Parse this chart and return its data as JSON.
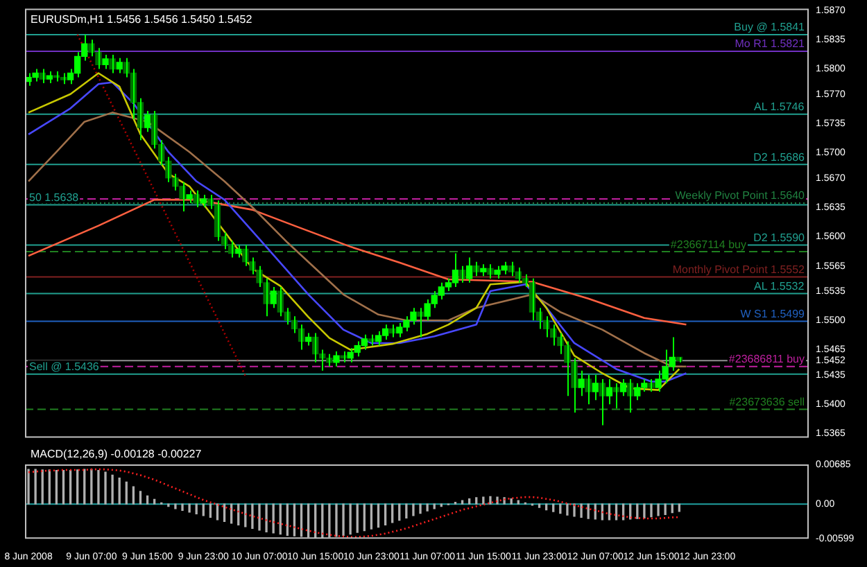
{
  "chart_data": [
    {
      "type": "candlestick",
      "title": "EURUSDm,H1 1.5456 1.5456 1.5450 1.5452",
      "color": "#00ff00",
      "colors": [
        "#00ff00",
        "#00ff00",
        "#007000",
        "#00ff00",
        "#007000",
        "#007000",
        "#00ff00",
        "#00ff00",
        "#00ff00",
        "#007000",
        "#007000",
        "#00ff00",
        "#007000",
        "#00ff00",
        "#007000",
        "#007000",
        "#007000",
        "#00ff00",
        "#007000",
        "#007000",
        "#007000",
        "#007000",
        "#007000",
        "#00ff00",
        "#007000",
        "#00ff00",
        "#007000",
        "#007000",
        "#007000",
        "#007000",
        "#00ff00",
        "#007000",
        "#007000",
        "#007000",
        "#007000",
        "#00ff00",
        "#007000",
        "#007000",
        "#007000",
        "#007000",
        "#00ff00",
        "#007000",
        "#007000",
        "#007000",
        "#00ff00",
        "#007000",
        "#00ff00",
        "#00ff00",
        "#00ff00",
        "#007000",
        "#00ff00",
        "#00ff00",
        "#007000",
        "#00ff00",
        "#00ff00",
        "#00ff00",
        "#007000",
        "#00ff00",
        "#00ff00",
        "#00ff00",
        "#00ff00",
        "#00ff00",
        "#007000",
        "#00ff00",
        "#007000",
        "#00ff00",
        "#007000",
        "#00ff00",
        "#00ff00",
        "#007000",
        "#007000",
        "#007000",
        "#007000",
        "#007000",
        "#007000",
        "#007000",
        "#007000",
        "#007000",
        "#007000",
        "#00ff00",
        "#007000",
        "#00ff00",
        "#007000",
        "#00ff00",
        "#007000",
        "#00ff00",
        "#007000",
        "#00ff00",
        "#00ff00",
        "#007000",
        "#00ff00",
        "#00ff00",
        "#00ff00",
        "#007000"
      ],
      "x": [
        "2008-06-08T22:00",
        "2008-06-08T23:00",
        "2008-06-09T00:00",
        "2008-06-09T01:00",
        "2008-06-09T02:00",
        "2008-06-09T03:00",
        "2008-06-09T04:00",
        "2008-06-09T05:00",
        "2008-06-09T06:00",
        "2008-06-09T07:00",
        "2008-06-09T08:00",
        "2008-06-09T09:00",
        "2008-06-09T10:00",
        "2008-06-09T11:00",
        "2008-06-09T12:00",
        "2008-06-09T13:00",
        "2008-06-09T14:00",
        "2008-06-09T15:00",
        "2008-06-09T16:00",
        "2008-06-09T17:00",
        "2008-06-09T18:00",
        "2008-06-09T19:00",
        "2008-06-09T20:00",
        "2008-06-09T21:00",
        "2008-06-09T22:00",
        "2008-06-09T23:00",
        "2008-06-10T00:00",
        "2008-06-10T01:00",
        "2008-06-10T02:00",
        "2008-06-10T03:00",
        "2008-06-10T04:00",
        "2008-06-10T05:00",
        "2008-06-10T06:00",
        "2008-06-10T07:00",
        "2008-06-10T08:00",
        "2008-06-10T09:00",
        "2008-06-10T10:00",
        "2008-06-10T11:00",
        "2008-06-10T12:00",
        "2008-06-10T13:00",
        "2008-06-10T14:00",
        "2008-06-10T15:00",
        "2008-06-10T16:00",
        "2008-06-10T17:00",
        "2008-06-10T18:00",
        "2008-06-10T19:00",
        "2008-06-10T20:00",
        "2008-06-10T21:00",
        "2008-06-10T22:00",
        "2008-06-10T23:00",
        "2008-06-11T00:00",
        "2008-06-11T01:00",
        "2008-06-11T02:00",
        "2008-06-11T03:00",
        "2008-06-11T04:00",
        "2008-06-11T05:00",
        "2008-06-11T06:00",
        "2008-06-11T07:00",
        "2008-06-11T08:00",
        "2008-06-11T09:00",
        "2008-06-11T10:00",
        "2008-06-11T11:00",
        "2008-06-11T12:00",
        "2008-06-11T13:00",
        "2008-06-11T14:00",
        "2008-06-11T15:00",
        "2008-06-11T16:00",
        "2008-06-11T17:00",
        "2008-06-11T18:00",
        "2008-06-11T19:00",
        "2008-06-11T20:00",
        "2008-06-11T21:00",
        "2008-06-11T22:00",
        "2008-06-11T23:00",
        "2008-06-12T00:00",
        "2008-06-12T01:00",
        "2008-06-12T02:00",
        "2008-06-12T03:00",
        "2008-06-12T04:00",
        "2008-06-12T05:00",
        "2008-06-12T06:00",
        "2008-06-12T07:00",
        "2008-06-12T08:00",
        "2008-06-12T09:00",
        "2008-06-12T10:00",
        "2008-06-12T11:00",
        "2008-06-12T12:00",
        "2008-06-12T13:00",
        "2008-06-12T14:00",
        "2008-06-12T15:00",
        "2008-06-12T16:00",
        "2008-06-12T17:00",
        "2008-06-12T18:00",
        "2008-06-12T19:00"
      ],
      "ohlc": [
        [
          1.5785,
          1.5795,
          1.578,
          1.579
        ],
        [
          1.579,
          1.58,
          1.5785,
          1.5795
        ],
        [
          1.5795,
          1.58,
          1.5783,
          1.5788
        ],
        [
          1.5788,
          1.5797,
          1.5783,
          1.5792
        ],
        [
          1.5792,
          1.5797,
          1.5785,
          1.579
        ],
        [
          1.579,
          1.5795,
          1.5782,
          1.5787
        ],
        [
          1.5787,
          1.58,
          1.5782,
          1.5795
        ],
        [
          1.5795,
          1.582,
          1.579,
          1.5815
        ],
        [
          1.5815,
          1.5841,
          1.581,
          1.583
        ],
        [
          1.583,
          1.5835,
          1.5815,
          1.582
        ],
        [
          1.582,
          1.5825,
          1.58,
          1.5805
        ],
        [
          1.5805,
          1.5817,
          1.58,
          1.5812
        ],
        [
          1.5812,
          1.5817,
          1.5795,
          1.58
        ],
        [
          1.58,
          1.5813,
          1.5795,
          1.5808
        ],
        [
          1.5808,
          1.5813,
          1.579,
          1.5795
        ],
        [
          1.5795,
          1.58,
          1.574,
          1.576
        ],
        [
          1.576,
          1.5765,
          1.5715,
          1.573
        ],
        [
          1.573,
          1.575,
          1.5725,
          1.5745
        ],
        [
          1.5745,
          1.575,
          1.5705,
          1.571
        ],
        [
          1.571,
          1.5715,
          1.5685,
          1.569
        ],
        [
          1.569,
          1.5695,
          1.5665,
          1.567
        ],
        [
          1.567,
          1.5675,
          1.5655,
          1.566
        ],
        [
          1.566,
          1.5665,
          1.563,
          1.5645
        ],
        [
          1.5645,
          1.5655,
          1.564,
          1.565
        ],
        [
          1.565,
          1.5655,
          1.5635,
          1.564
        ],
        [
          1.564,
          1.565,
          1.5635,
          1.5645
        ],
        [
          1.5645,
          1.565,
          1.5633,
          1.5638
        ],
        [
          1.5638,
          1.5643,
          1.5595,
          1.56
        ],
        [
          1.56,
          1.5605,
          1.5585,
          1.559
        ],
        [
          1.559,
          1.5595,
          1.5575,
          1.558
        ],
        [
          1.558,
          1.559,
          1.5575,
          1.5585
        ],
        [
          1.5585,
          1.559,
          1.5565,
          1.557
        ],
        [
          1.557,
          1.5575,
          1.5555,
          1.556
        ],
        [
          1.556,
          1.5565,
          1.554,
          1.5545
        ],
        [
          1.5545,
          1.555,
          1.5505,
          1.552
        ],
        [
          1.552,
          1.554,
          1.5515,
          1.5535
        ],
        [
          1.5535,
          1.554,
          1.5505,
          1.551
        ],
        [
          1.551,
          1.5515,
          1.5495,
          1.55
        ],
        [
          1.55,
          1.5505,
          1.5485,
          1.549
        ],
        [
          1.549,
          1.5495,
          1.5465,
          1.5475
        ],
        [
          1.5475,
          1.5485,
          1.547,
          1.548
        ],
        [
          1.548,
          1.5485,
          1.545,
          1.546
        ],
        [
          1.546,
          1.5465,
          1.544,
          1.5455
        ],
        [
          1.5455,
          1.546,
          1.5445,
          1.545
        ],
        [
          1.545,
          1.5463,
          1.5445,
          1.5458
        ],
        [
          1.5458,
          1.5463,
          1.545,
          1.5455
        ],
        [
          1.5455,
          1.5467,
          1.545,
          1.5462
        ],
        [
          1.5462,
          1.5475,
          1.5457,
          1.547
        ],
        [
          1.547,
          1.5483,
          1.5465,
          1.5478
        ],
        [
          1.5478,
          1.5483,
          1.547,
          1.5475
        ],
        [
          1.5475,
          1.5487,
          1.547,
          1.5482
        ],
        [
          1.5482,
          1.5495,
          1.5477,
          1.549
        ],
        [
          1.549,
          1.5495,
          1.548,
          1.5485
        ],
        [
          1.5485,
          1.5497,
          1.548,
          1.5492
        ],
        [
          1.5492,
          1.5505,
          1.5487,
          1.55
        ],
        [
          1.55,
          1.5515,
          1.5495,
          1.551
        ],
        [
          1.551,
          1.5515,
          1.548,
          1.5505
        ],
        [
          1.5505,
          1.5525,
          1.55,
          1.552
        ],
        [
          1.552,
          1.5535,
          1.5515,
          1.553
        ],
        [
          1.553,
          1.5545,
          1.5525,
          1.554
        ],
        [
          1.554,
          1.555,
          1.5535,
          1.5545
        ],
        [
          1.5545,
          1.558,
          1.554,
          1.556
        ],
        [
          1.556,
          1.5565,
          1.5545,
          1.555
        ],
        [
          1.555,
          1.5575,
          1.5545,
          1.5565
        ],
        [
          1.5565,
          1.557,
          1.5553,
          1.5558
        ],
        [
          1.5558,
          1.5567,
          1.5553,
          1.5562
        ],
        [
          1.5562,
          1.5567,
          1.555,
          1.5555
        ],
        [
          1.5555,
          1.5565,
          1.555,
          1.556
        ],
        [
          1.556,
          1.557,
          1.5555,
          1.5565
        ],
        [
          1.5565,
          1.557,
          1.5553,
          1.5558
        ],
        [
          1.5558,
          1.5563,
          1.5545,
          1.555
        ],
        [
          1.555,
          1.5555,
          1.554,
          1.5545
        ],
        [
          1.5545,
          1.555,
          1.55,
          1.551
        ],
        [
          1.551,
          1.5515,
          1.549,
          1.55
        ],
        [
          1.55,
          1.5505,
          1.548,
          1.549
        ],
        [
          1.549,
          1.5495,
          1.547,
          1.548
        ],
        [
          1.548,
          1.5485,
          1.546,
          1.547
        ],
        [
          1.547,
          1.5475,
          1.541,
          1.545
        ],
        [
          1.545,
          1.5455,
          1.539,
          1.542
        ],
        [
          1.542,
          1.544,
          1.541,
          1.543
        ],
        [
          1.543,
          1.5435,
          1.54,
          1.5415
        ],
        [
          1.5415,
          1.5435,
          1.5405,
          1.5425
        ],
        [
          1.5425,
          1.543,
          1.5375,
          1.541
        ],
        [
          1.541,
          1.543,
          1.54,
          1.542
        ],
        [
          1.542,
          1.5425,
          1.5395,
          1.5415
        ],
        [
          1.5415,
          1.543,
          1.541,
          1.5425
        ],
        [
          1.5425,
          1.543,
          1.539,
          1.541
        ],
        [
          1.541,
          1.5425,
          1.5405,
          1.542
        ],
        [
          1.542,
          1.543,
          1.5415,
          1.5425
        ],
        [
          1.5425,
          1.543,
          1.5415,
          1.542
        ],
        [
          1.542,
          1.544,
          1.5415,
          1.543
        ],
        [
          1.543,
          1.5465,
          1.5425,
          1.5445
        ],
        [
          1.5445,
          1.548,
          1.544,
          1.5456
        ],
        [
          1.5456,
          1.5456,
          1.545,
          1.5452
        ]
      ],
      "series": [
        {
          "type": "line",
          "color": "#c8c800",
          "x": [
            "2008-06-08T22:00",
            "2008-06-09T04:00",
            "2008-06-09T08:00",
            "2008-06-09T11:00",
            "2008-06-09T14:00",
            "2008-06-09T18:00",
            "2008-06-09T21:00",
            "2008-06-10T00:00",
            "2008-06-10T06:00",
            "2008-06-10T10:00",
            "2008-06-10T14:00",
            "2008-06-10T17:00",
            "2008-06-10T20:00",
            "2008-06-11T02:00",
            "2008-06-11T07:00",
            "2008-06-11T10:00",
            "2008-06-11T14:00",
            "2008-06-11T16:00",
            "2008-06-11T21:00",
            "2008-06-12T00:00",
            "2008-06-12T04:00",
            "2008-06-12T08:00",
            "2008-06-12T12:00",
            "2008-06-12T16:00",
            "2008-06-12T19:00"
          ],
          "values": [
            1.5748,
            1.577,
            1.5795,
            1.5779,
            1.5722,
            1.5675,
            1.566,
            1.5628,
            1.5562,
            1.5541,
            1.5504,
            1.5479,
            1.5465,
            1.5472,
            1.5484,
            1.5495,
            1.5515,
            1.5543,
            1.5546,
            1.5515,
            1.5458,
            1.5437,
            1.5419,
            1.5417,
            1.5442
          ]
        },
        {
          "type": "line",
          "color": "#4848ff",
          "x": [
            "2008-06-08T22:00",
            "2008-06-09T04:00",
            "2008-06-09T08:00",
            "2008-06-09T10:00",
            "2008-06-09T13:00",
            "2008-06-09T18:00",
            "2008-06-09T22:00",
            "2008-06-10T02:00",
            "2008-06-10T07:00",
            "2008-06-10T14:00",
            "2008-06-10T19:00",
            "2008-06-10T23:00",
            "2008-06-11T03:00",
            "2008-06-11T08:00",
            "2008-06-11T14:00",
            "2008-06-11T16:00",
            "2008-06-11T21:00",
            "2008-06-11T23:00",
            "2008-06-12T04:00",
            "2008-06-12T10:00",
            "2008-06-12T15:00",
            "2008-06-12T17:00",
            "2008-06-12T20:00"
          ],
          "values": [
            1.5722,
            1.5753,
            1.5782,
            1.5784,
            1.5759,
            1.5701,
            1.5666,
            1.5644,
            1.5597,
            1.5531,
            1.5489,
            1.5473,
            1.5473,
            1.5481,
            1.5495,
            1.5535,
            1.5543,
            1.5526,
            1.5473,
            1.5442,
            1.5427,
            1.5427,
            1.5437
          ]
        },
        {
          "type": "line",
          "color": "#a0704a",
          "x": [
            "2008-06-08T22:00",
            "2008-06-09T02:00",
            "2008-06-09T06:00",
            "2008-06-09T10:00",
            "2008-06-09T15:00",
            "2008-06-09T21:00",
            "2008-06-10T02:00",
            "2008-06-10T06:00",
            "2008-06-10T11:00",
            "2008-06-10T15:00",
            "2008-06-10T19:00",
            "2008-06-11T00:00",
            "2008-06-11T04:00",
            "2008-06-11T10:00",
            "2008-06-11T14:00",
            "2008-06-11T22:00",
            "2008-06-12T02:00",
            "2008-06-12T08:00",
            "2008-06-12T14:00",
            "2008-06-12T18:00",
            "2008-06-12T20:00"
          ],
          "values": [
            1.5666,
            1.5701,
            1.5737,
            1.5748,
            1.5737,
            1.5701,
            1.5666,
            1.5635,
            1.5593,
            1.5562,
            1.5531,
            1.5507,
            1.55,
            1.55,
            1.5515,
            1.5531,
            1.551,
            1.5489,
            1.5461,
            1.5445,
            1.5445
          ]
        },
        {
          "type": "line",
          "color": "#ff6040",
          "x": [
            "2008-06-08T22:00",
            "2008-06-09T08:00",
            "2008-06-09T16:00",
            "2008-06-09T22:00",
            "2008-06-10T06:00",
            "2008-06-10T12:00",
            "2008-06-10T20:00",
            "2008-06-11T03:00",
            "2008-06-11T10:00",
            "2008-06-11T22:00",
            "2008-06-12T06:00",
            "2008-06-12T14:00",
            "2008-06-12T20:00"
          ],
          "values": [
            1.5577,
            1.5613,
            1.5644,
            1.5644,
            1.5632,
            1.5613,
            1.5588,
            1.5569,
            1.5549,
            1.5546,
            1.5526,
            1.5503,
            1.5495
          ]
        },
        {
          "type": "line",
          "color": "#b00000",
          "line_style": "dotted",
          "x": [
            "2008-06-09T05:00",
            "2008-06-10T05:00"
          ],
          "values": [
            1.5841,
            1.5434
          ]
        }
      ],
      "ref_lines": [
        {
          "axis": "y",
          "value": 1.5841,
          "label": "Buy @ 1.5841",
          "color": "#20a090"
        },
        {
          "axis": "y",
          "value": 1.5821,
          "label": "Mo R1 1.5821",
          "color": "#7030c0"
        },
        {
          "axis": "y",
          "value": 1.5746,
          "label": "AL 1.5746",
          "color": "#20a090"
        },
        {
          "axis": "y",
          "value": 1.5686,
          "label": "D2 1.5686",
          "color": "#20a090"
        },
        {
          "axis": "y",
          "value": 1.5645,
          "color": "#c020a0",
          "line_style": "dashed"
        },
        {
          "axis": "y",
          "value": 1.564,
          "label": "Weekly Pivot Point 1.5640",
          "color": "#208040",
          "line_style": "dotted"
        },
        {
          "axis": "y",
          "value": 1.5638,
          "label": "50 1.5638",
          "color": "#20a090"
        },
        {
          "axis": "y",
          "value": 1.559,
          "label": "D2 1.5590",
          "color": "#20a090"
        },
        {
          "axis": "y",
          "value": 1.5582,
          "label": "#23667114 buy",
          "color": "#208020",
          "line_style": "dashed"
        },
        {
          "axis": "y",
          "value": 1.5552,
          "label": "Monthly Pivot Point 1.5552",
          "color": "#802020"
        },
        {
          "axis": "y",
          "value": 1.5532,
          "label": "AL 1.5532",
          "color": "#20a090"
        },
        {
          "axis": "y",
          "value": 1.5499,
          "label": "W S1 1.5499",
          "color": "#2060c0"
        },
        {
          "axis": "y",
          "value": 1.5452,
          "color": "#909090"
        },
        {
          "axis": "y",
          "value": 1.5445,
          "label": "#23686811 buy",
          "color": "#c020a0",
          "line_style": "dashed"
        },
        {
          "axis": "y",
          "value": 1.5436,
          "label": "Sell @ 1.5436",
          "color": "#20a090"
        },
        {
          "axis": "y",
          "value": 1.5394,
          "label": "#23673636 sell",
          "color": "#208020",
          "line_style": "dashed"
        }
      ],
      "xlim": [
        "2008-06-08T21:30",
        "2008-06-13T13:30"
      ],
      "ylim": [
        1.536,
        1.5872
      ],
      "yticks": [
        {
          "value": 1.587,
          "label": "1.5870"
        },
        1.5835,
        {
          "value": 1.58,
          "label": "1.5800"
        },
        {
          "value": 1.577,
          "label": "1.5770"
        },
        1.5735,
        {
          "value": 1.57,
          "label": "1.5700"
        },
        {
          "value": 1.567,
          "label": "1.5670"
        },
        1.5635,
        {
          "value": 1.56,
          "label": "1.5600"
        },
        1.5565,
        1.5535,
        {
          "value": 1.55,
          "label": "1.5500"
        },
        1.5465,
        1.5452,
        1.5435,
        {
          "value": 1.54,
          "label": "1.5400"
        },
        1.5365
      ],
      "tick_labels": "y"
    },
    {
      "type": "bar",
      "title": "MACD(12,26,9) -0.00128 -0.00227",
      "x": [
        "2008-06-08T22:00",
        "2008-06-08T23:00",
        "2008-06-09T00:00",
        "2008-06-09T01:00",
        "2008-06-09T02:00",
        "2008-06-09T03:00",
        "2008-06-09T04:00",
        "2008-06-09T05:00",
        "2008-06-09T06:00",
        "2008-06-09T07:00",
        "2008-06-09T08:00",
        "2008-06-09T09:00",
        "2008-06-09T10:00",
        "2008-06-09T11:00",
        "2008-06-09T12:00",
        "2008-06-09T13:00",
        "2008-06-09T14:00",
        "2008-06-09T15:00",
        "2008-06-09T16:00",
        "2008-06-09T17:00",
        "2008-06-09T18:00",
        "2008-06-09T19:00",
        "2008-06-09T20:00",
        "2008-06-09T21:00",
        "2008-06-09T22:00",
        "2008-06-09T23:00",
        "2008-06-10T00:00",
        "2008-06-10T01:00",
        "2008-06-10T02:00",
        "2008-06-10T03:00",
        "2008-06-10T04:00",
        "2008-06-10T05:00",
        "2008-06-10T06:00",
        "2008-06-10T07:00",
        "2008-06-10T08:00",
        "2008-06-10T09:00",
        "2008-06-10T10:00",
        "2008-06-10T11:00",
        "2008-06-10T12:00",
        "2008-06-10T13:00",
        "2008-06-10T14:00",
        "2008-06-10T15:00",
        "2008-06-10T16:00",
        "2008-06-10T17:00",
        "2008-06-10T18:00",
        "2008-06-10T19:00",
        "2008-06-10T20:00",
        "2008-06-10T21:00",
        "2008-06-10T22:00",
        "2008-06-10T23:00",
        "2008-06-11T00:00",
        "2008-06-11T01:00",
        "2008-06-11T02:00",
        "2008-06-11T03:00",
        "2008-06-11T04:00",
        "2008-06-11T05:00",
        "2008-06-11T06:00",
        "2008-06-11T07:00",
        "2008-06-11T08:00",
        "2008-06-11T09:00",
        "2008-06-11T10:00",
        "2008-06-11T11:00",
        "2008-06-11T12:00",
        "2008-06-11T13:00",
        "2008-06-11T14:00",
        "2008-06-11T15:00",
        "2008-06-11T16:00",
        "2008-06-11T17:00",
        "2008-06-11T18:00",
        "2008-06-11T19:00",
        "2008-06-11T20:00",
        "2008-06-11T21:00",
        "2008-06-11T22:00",
        "2008-06-11T23:00",
        "2008-06-12T00:00",
        "2008-06-12T01:00",
        "2008-06-12T02:00",
        "2008-06-12T03:00",
        "2008-06-12T04:00",
        "2008-06-12T05:00",
        "2008-06-12T06:00",
        "2008-06-12T07:00",
        "2008-06-12T08:00",
        "2008-06-12T09:00",
        "2008-06-12T10:00",
        "2008-06-12T11:00",
        "2008-06-12T12:00",
        "2008-06-12T13:00",
        "2008-06-12T14:00",
        "2008-06-12T15:00",
        "2008-06-12T16:00",
        "2008-06-12T17:00",
        "2008-06-12T18:00",
        "2008-06-12T19:00"
      ],
      "series": [
        {
          "type": "bar",
          "color": "#b0b0b0",
          "values": [
            0.006,
            0.006,
            0.0059,
            0.0059,
            0.0058,
            0.0058,
            0.0058,
            0.0059,
            0.006,
            0.006,
            0.0058,
            0.0055,
            0.005,
            0.0045,
            0.0038,
            0.003,
            0.0022,
            0.0014,
            0.0008,
            0.0002,
            -0.0004,
            -0.0008,
            -0.0011,
            -0.0014,
            -0.0017,
            -0.002,
            -0.0023,
            -0.0027,
            -0.003,
            -0.0033,
            -0.0036,
            -0.0039,
            -0.0042,
            -0.0045,
            -0.0048,
            -0.005,
            -0.0052,
            -0.0054,
            -0.0055,
            -0.0056,
            -0.0057,
            -0.0058,
            -0.0058,
            -0.0057,
            -0.0056,
            -0.0054,
            -0.0052,
            -0.0049,
            -0.0046,
            -0.0043,
            -0.004,
            -0.0036,
            -0.0032,
            -0.0028,
            -0.0024,
            -0.002,
            -0.0016,
            -0.0012,
            -0.0008,
            -0.0004,
            -0.0001,
            0.0003,
            0.0006,
            0.0009,
            0.0011,
            0.0012,
            0.0013,
            0.0012,
            0.0011,
            0.0009,
            0.0006,
            0.0002,
            -0.0002,
            -0.0006,
            -0.001,
            -0.0013,
            -0.0016,
            -0.0019,
            -0.0021,
            -0.0023,
            -0.0025,
            -0.0026,
            -0.0027,
            -0.0027,
            -0.0027,
            -0.0027,
            -0.0026,
            -0.0025,
            -0.0024,
            -0.0022,
            -0.002,
            -0.0018,
            -0.0015,
            -0.00128
          ]
        },
        {
          "type": "line",
          "color": "#ff2020",
          "line_style": "dotted",
          "values": [
            0.0055,
            0.0056,
            0.0057,
            0.0058,
            0.0058,
            0.0059,
            0.0059,
            0.0059,
            0.0059,
            0.006,
            0.006,
            0.006,
            0.0059,
            0.0058,
            0.0056,
            0.0053,
            0.005,
            0.0046,
            0.0042,
            0.0037,
            0.0032,
            0.0027,
            0.0022,
            0.0017,
            0.0012,
            0.0007,
            0.0003,
            -0.0001,
            -0.0005,
            -0.0009,
            -0.0013,
            -0.0017,
            -0.0021,
            -0.0024,
            -0.0028,
            -0.0031,
            -0.0034,
            -0.0037,
            -0.004,
            -0.0043,
            -0.0046,
            -0.0049,
            -0.0051,
            -0.0053,
            -0.0055,
            -0.0056,
            -0.0057,
            -0.0057,
            -0.0056,
            -0.0055,
            -0.0053,
            -0.0051,
            -0.0048,
            -0.0045,
            -0.0042,
            -0.0038,
            -0.0034,
            -0.003,
            -0.0026,
            -0.0022,
            -0.0018,
            -0.0014,
            -0.001,
            -0.0007,
            -0.0004,
            -0.0001,
            0.0002,
            0.0005,
            0.0008,
            0.001,
            0.0011,
            0.0012,
            0.0012,
            0.0011,
            0.0009,
            0.0007,
            0.0004,
            0.0001,
            -0.0002,
            -0.0005,
            -0.0008,
            -0.0011,
            -0.0014,
            -0.0017,
            -0.0019,
            -0.0021,
            -0.0023,
            -0.0024,
            -0.0025,
            -0.0025,
            -0.0025,
            -0.0024,
            -0.0023,
            -0.00227
          ]
        }
      ],
      "ref_lines": [
        {
          "axis": "y",
          "value": 0,
          "color": "#20a0a0"
        }
      ],
      "xlim": [
        "2008-06-08T21:30",
        "2008-06-13T13:30"
      ],
      "xticks": [
        {
          "value": "2008-06-08T22:00",
          "label": "8 Jun 2008"
        },
        {
          "value": "2008-06-09T07:00",
          "label": "9 Jun 07:00"
        },
        {
          "value": "2008-06-09T15:00",
          "label": "9 Jun 15:00"
        },
        {
          "value": "2008-06-09T23:00",
          "label": "9 Jun 23:00"
        },
        {
          "value": "2008-06-10T07:00",
          "label": "10 Jun 07:00"
        },
        {
          "value": "2008-06-10T15:00",
          "label": "10 Jun 15:00"
        },
        {
          "value": "2008-06-10T23:00",
          "label": "10 Jun 23:00"
        },
        {
          "value": "2008-06-11T07:00",
          "label": "11 Jun 07:00"
        },
        {
          "value": "2008-06-11T15:00",
          "label": "11 Jun 15:00"
        },
        {
          "value": "2008-06-11T23:00",
          "label": "11 Jun 23:00"
        },
        {
          "value": "2008-06-12T07:00",
          "label": "12 Jun 07:00"
        },
        {
          "value": "2008-06-12T15:00",
          "label": "12 Jun 15:00"
        },
        {
          "value": "2008-06-12T23:00",
          "label": "12 Jun 23:00"
        }
      ],
      "ylim": [
        -0.00599,
        0.00685
      ],
      "yticks": [
        {
          "value": 0.00685,
          "label": "0.00685"
        },
        {
          "value": 0,
          "label": "0.00"
        },
        {
          "value": -0.00599,
          "label": "-0.00599"
        }
      ]
    }
  ]
}
